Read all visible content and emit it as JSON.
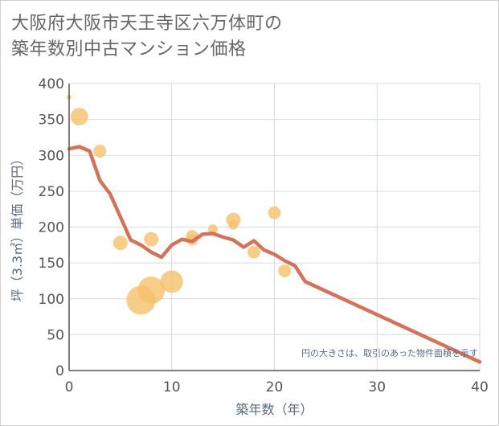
{
  "title_line1": "大阪府大阪市天王寺区六万体町の",
  "title_line2": "築年数別中古マンション価格",
  "chart_data": {
    "type": "scatter+line",
    "xlabel": "築年数（年）",
    "ylabel": "坪（3.3㎡）単価（万円）",
    "xlim": [
      0,
      40
    ],
    "ylim": [
      0,
      400
    ],
    "x_ticks": [
      "0",
      "10",
      "20",
      "30",
      "40"
    ],
    "y_ticks": [
      "0",
      "50",
      "100",
      "150",
      "200",
      "250",
      "300",
      "350",
      "400"
    ],
    "grid": true,
    "note": "円の大きさは、取引のあった物件面積を示す",
    "colors": {
      "bubble": "#f5c26b",
      "line": "#d4725a",
      "grid": "#d5dbe3"
    },
    "bubbles": [
      {
        "x": 0,
        "y": 381,
        "size": 3
      },
      {
        "x": 1,
        "y": 354,
        "size": 11
      },
      {
        "x": 3,
        "y": 306,
        "size": 8
      },
      {
        "x": 5,
        "y": 178,
        "size": 9
      },
      {
        "x": 7,
        "y": 98,
        "size": 18
      },
      {
        "x": 8,
        "y": 112,
        "size": 17
      },
      {
        "x": 8,
        "y": 183,
        "size": 9
      },
      {
        "x": 10,
        "y": 124,
        "size": 14
      },
      {
        "x": 12,
        "y": 187,
        "size": 8
      },
      {
        "x": 12,
        "y": 182,
        "size": 7
      },
      {
        "x": 14,
        "y": 197,
        "size": 6
      },
      {
        "x": 16,
        "y": 210,
        "size": 9
      },
      {
        "x": 16,
        "y": 203,
        "size": 6
      },
      {
        "x": 18,
        "y": 165,
        "size": 8
      },
      {
        "x": 20,
        "y": 220,
        "size": 8
      },
      {
        "x": 21,
        "y": 139,
        "size": 8
      }
    ],
    "trend": {
      "x": [
        0,
        1,
        2,
        3,
        4,
        5,
        6,
        7,
        8,
        9,
        10,
        11,
        12,
        13,
        14,
        15,
        16,
        17,
        18,
        19,
        20,
        21,
        22,
        23,
        40
      ],
      "y": [
        309,
        312,
        306,
        265,
        246,
        214,
        182,
        175,
        165,
        158,
        175,
        183,
        180,
        190,
        191,
        186,
        182,
        172,
        181,
        168,
        162,
        153,
        146,
        124,
        12
      ]
    }
  }
}
